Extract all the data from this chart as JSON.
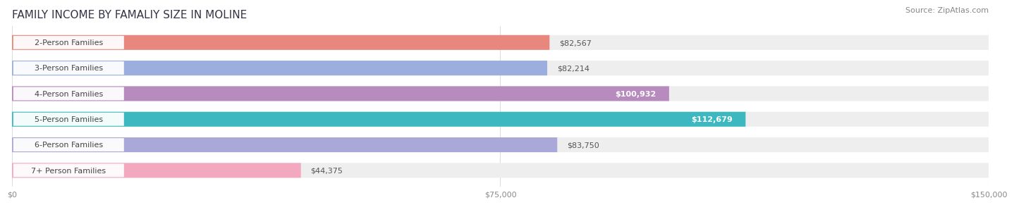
{
  "title": "FAMILY INCOME BY FAMALIY SIZE IN MOLINE",
  "source": "Source: ZipAtlas.com",
  "categories": [
    "2-Person Families",
    "3-Person Families",
    "4-Person Families",
    "5-Person Families",
    "6-Person Families",
    "7+ Person Families"
  ],
  "values": [
    82567,
    82214,
    100932,
    112679,
    83750,
    44375
  ],
  "bar_colors": [
    "#E8877D",
    "#9BAEDD",
    "#B88BBE",
    "#3BB8C0",
    "#AAA8D8",
    "#F4A8C0"
  ],
  "value_labels": [
    "$82,567",
    "$82,214",
    "$100,932",
    "$112,679",
    "$83,750",
    "$44,375"
  ],
  "label_inside": [
    false,
    false,
    true,
    true,
    false,
    false
  ],
  "xlim": [
    0,
    150000
  ],
  "xticks": [
    0,
    75000,
    150000
  ],
  "xticklabels": [
    "$0",
    "$75,000",
    "$150,000"
  ],
  "background_color": "#FFFFFF",
  "bar_bg_color": "#EEEEEE",
  "title_fontsize": 11,
  "source_fontsize": 8,
  "cat_label_fontsize": 8,
  "tick_fontsize": 8,
  "value_label_fontsize": 8
}
